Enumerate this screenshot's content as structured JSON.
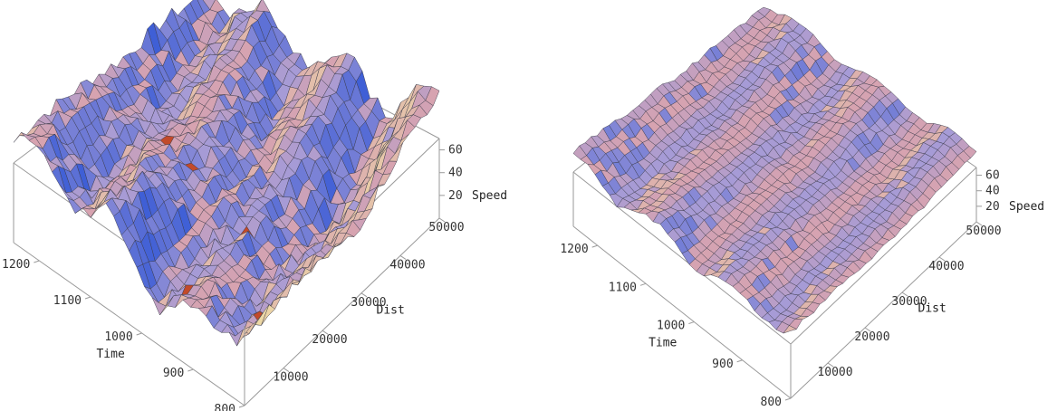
{
  "chart_data": [
    {
      "type": "surface",
      "panel": "left",
      "title": "",
      "xlabel": "Time",
      "ylabel": "Dist",
      "zlabel": "Speed",
      "x_ticks": [
        800,
        900,
        1000,
        1100,
        1200
      ],
      "y_ticks": [
        10000,
        20000,
        30000,
        40000,
        50000
      ],
      "z_ticks": [
        20,
        40,
        60
      ],
      "xlim": [
        800,
        1250
      ],
      "ylim": [
        0,
        50000
      ],
      "zlim": [
        0,
        70
      ],
      "time_values": [
        800,
        900,
        1000,
        1100,
        1200,
        1250
      ],
      "dist_values": [
        0,
        10000,
        20000,
        30000,
        40000,
        50000
      ],
      "speed_values": [
        [
          55,
          52,
          48,
          30,
          25,
          45
        ],
        [
          54,
          40,
          50,
          28,
          22,
          40
        ],
        [
          56,
          45,
          42,
          35,
          20,
          38
        ],
        [
          53,
          38,
          47,
          32,
          18,
          35
        ],
        [
          57,
          50,
          44,
          40,
          30,
          50
        ],
        [
          60,
          58,
          55,
          55,
          50,
          65
        ]
      ]
    },
    {
      "type": "surface",
      "panel": "right",
      "title": "",
      "xlabel": "Time",
      "ylabel": "Dist",
      "zlabel": "Speed",
      "x_ticks": [
        800,
        900,
        1000,
        1100,
        1200
      ],
      "y_ticks": [
        10000,
        20000,
        30000,
        40000,
        50000
      ],
      "z_ticks": [
        20,
        40,
        60
      ],
      "xlim": [
        800,
        1250
      ],
      "ylim": [
        0,
        50000
      ],
      "zlim": [
        0,
        70
      ],
      "time_values": [
        800,
        900,
        1000,
        1100,
        1200,
        1250
      ],
      "dist_values": [
        0,
        10000,
        20000,
        30000,
        40000,
        50000
      ],
      "speed_values": [
        [
          55,
          50,
          52,
          48,
          50,
          52
        ],
        [
          54,
          46,
          50,
          47,
          49,
          50
        ],
        [
          56,
          48,
          49,
          50,
          48,
          51
        ],
        [
          53,
          47,
          51,
          46,
          50,
          49
        ],
        [
          57,
          52,
          50,
          52,
          51,
          53
        ],
        [
          60,
          56,
          55,
          56,
          55,
          58
        ]
      ]
    }
  ],
  "colors": {
    "surface_base": "#a69bd6",
    "surface_warm": "#d7a3b0",
    "mesh_line": "#3a3a4a",
    "box_line": "#9a9a9a",
    "highlight": "#f3e7a2",
    "shadow_blue": "#3f5fd6",
    "accent_red": "#c24a2a"
  }
}
